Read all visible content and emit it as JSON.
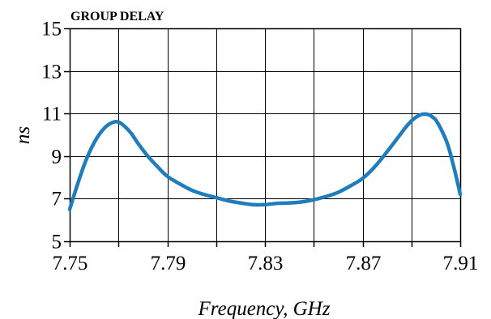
{
  "chart_data": {
    "type": "line",
    "title": "GROUP DELAY",
    "xlabel": "Frequency, GHz",
    "ylabel": "ns",
    "xlim": [
      7.75,
      7.91
    ],
    "ylim": [
      5,
      15
    ],
    "x_ticks": [
      7.75,
      7.77,
      7.79,
      7.81,
      7.83,
      7.85,
      7.87,
      7.89,
      7.91
    ],
    "x_tick_labels": [
      "7.75",
      "",
      "7.79",
      "",
      "7.83",
      "",
      "7.87",
      "",
      "7.91"
    ],
    "y_ticks": [
      5,
      7,
      9,
      11,
      13,
      15
    ],
    "y_tick_labels": [
      "5",
      "7",
      "9",
      "11",
      "13",
      "15"
    ],
    "grid": true,
    "colors": {
      "line": "#1f7dbd",
      "grid": "#000000",
      "axis": "#000000"
    },
    "series": [
      {
        "x": [
          7.75,
          7.753,
          7.756,
          7.759,
          7.762,
          7.765,
          7.768,
          7.77,
          7.772,
          7.775,
          7.778,
          7.782,
          7.786,
          7.79,
          7.795,
          7.8,
          7.805,
          7.81,
          7.815,
          7.82,
          7.825,
          7.83,
          7.835,
          7.84,
          7.845,
          7.85,
          7.855,
          7.86,
          7.865,
          7.87,
          7.875,
          7.88,
          7.885,
          7.888,
          7.891,
          7.894,
          7.897,
          7.899,
          7.9,
          7.902,
          7.905,
          7.908,
          7.91
        ],
        "y": [
          6.5,
          7.6,
          8.6,
          9.4,
          10.0,
          10.4,
          10.6,
          10.6,
          10.45,
          10.1,
          9.6,
          9.0,
          8.5,
          8.05,
          7.7,
          7.4,
          7.2,
          7.05,
          6.9,
          6.8,
          6.72,
          6.72,
          6.78,
          6.8,
          6.85,
          6.95,
          7.1,
          7.3,
          7.6,
          7.95,
          8.5,
          9.2,
          9.95,
          10.4,
          10.75,
          10.95,
          10.95,
          10.8,
          10.7,
          10.3,
          9.5,
          8.2,
          7.2
        ]
      }
    ]
  }
}
